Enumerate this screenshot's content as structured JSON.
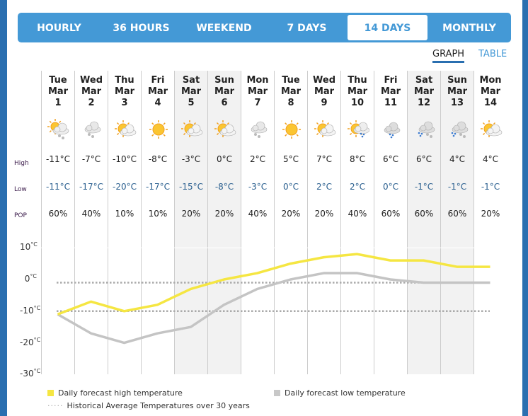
{
  "tabs": [
    {
      "label": "HOURLY"
    },
    {
      "label": "36 HOURS"
    },
    {
      "label": "WEEKEND"
    },
    {
      "label": "7 DAYS"
    },
    {
      "label": "14 DAYS",
      "active": true
    },
    {
      "label": "MONTHLY"
    }
  ],
  "view_toggle": {
    "graph": "GRAPH",
    "table": "TABLE",
    "active": "GRAPH"
  },
  "row_labels": {
    "high": "High",
    "low": "Low",
    "pop": "POP"
  },
  "days": [
    {
      "dow": "Tue",
      "mon": "Mar",
      "d": "1",
      "icon": "sun-cloud-snow-icon",
      "high": "-11°C",
      "low": "-11°C",
      "pop": "60%",
      "weekend": false
    },
    {
      "dow": "Wed",
      "mon": "Mar",
      "d": "2",
      "icon": "cloud-snow-icon",
      "high": "-7°C",
      "low": "-17°C",
      "pop": "40%",
      "weekend": false
    },
    {
      "dow": "Thu",
      "mon": "Mar",
      "d": "3",
      "icon": "sun-cloud-icon",
      "high": "-10°C",
      "low": "-20°C",
      "pop": "10%",
      "weekend": false
    },
    {
      "dow": "Fri",
      "mon": "Mar",
      "d": "4",
      "icon": "sun-icon",
      "high": "-8°C",
      "low": "-17°C",
      "pop": "10%",
      "weekend": false
    },
    {
      "dow": "Sat",
      "mon": "Mar",
      "d": "5",
      "icon": "sun-cloud-icon",
      "high": "-3°C",
      "low": "-15°C",
      "pop": "20%",
      "weekend": true
    },
    {
      "dow": "Sun",
      "mon": "Mar",
      "d": "6",
      "icon": "sun-cloud-icon",
      "high": "0°C",
      "low": "-8°C",
      "pop": "20%",
      "weekend": true
    },
    {
      "dow": "Mon",
      "mon": "Mar",
      "d": "7",
      "icon": "cloud-snow-icon",
      "high": "2°C",
      "low": "-3°C",
      "pop": "40%",
      "weekend": false
    },
    {
      "dow": "Tue",
      "mon": "Mar",
      "d": "8",
      "icon": "sun-icon",
      "high": "5°C",
      "low": "0°C",
      "pop": "20%",
      "weekend": false
    },
    {
      "dow": "Wed",
      "mon": "Mar",
      "d": "9",
      "icon": "sun-cloud-icon",
      "high": "7°C",
      "low": "2°C",
      "pop": "20%",
      "weekend": false
    },
    {
      "dow": "Thu",
      "mon": "Mar",
      "d": "10",
      "icon": "sun-cloud-rain-icon",
      "high": "8°C",
      "low": "2°C",
      "pop": "40%",
      "weekend": false
    },
    {
      "dow": "Fri",
      "mon": "Mar",
      "d": "11",
      "icon": "cloud-rain-icon",
      "high": "6°C",
      "low": "0°C",
      "pop": "60%",
      "weekend": false
    },
    {
      "dow": "Sat",
      "mon": "Mar",
      "d": "12",
      "icon": "rain-snow-icon",
      "high": "6°C",
      "low": "-1°C",
      "pop": "60%",
      "weekend": true
    },
    {
      "dow": "Sun",
      "mon": "Mar",
      "d": "13",
      "icon": "rain-snow-icon",
      "high": "4°C",
      "low": "-1°C",
      "pop": "60%",
      "weekend": true
    },
    {
      "dow": "Mon",
      "mon": "Mar",
      "d": "14",
      "icon": "sun-cloud-icon",
      "high": "4°C",
      "low": "-1°C",
      "pop": "20%",
      "weekend": false
    }
  ],
  "chart_data": {
    "type": "line",
    "y_ticks": [
      "10",
      "0",
      "-10",
      "-20",
      "-30"
    ],
    "y_unit": "°C",
    "ylim": [
      -30,
      10
    ],
    "series": [
      {
        "name": "Daily forecast high temperature",
        "color": "#f5e642",
        "values": [
          -11,
          -7,
          -10,
          -8,
          -3,
          0,
          2,
          5,
          7,
          8,
          6,
          6,
          4,
          4
        ]
      },
      {
        "name": "Daily forecast low temperature",
        "color": "#c4c4c4",
        "values": [
          -11,
          -17,
          -20,
          -17,
          -15,
          -8,
          -3,
          0,
          2,
          2,
          0,
          -1,
          -1,
          -1
        ]
      }
    ],
    "historical": {
      "name": "Historical Average Temperatures over 30 years",
      "high": -1,
      "low": -10,
      "color": "#aaaaaa"
    }
  }
}
